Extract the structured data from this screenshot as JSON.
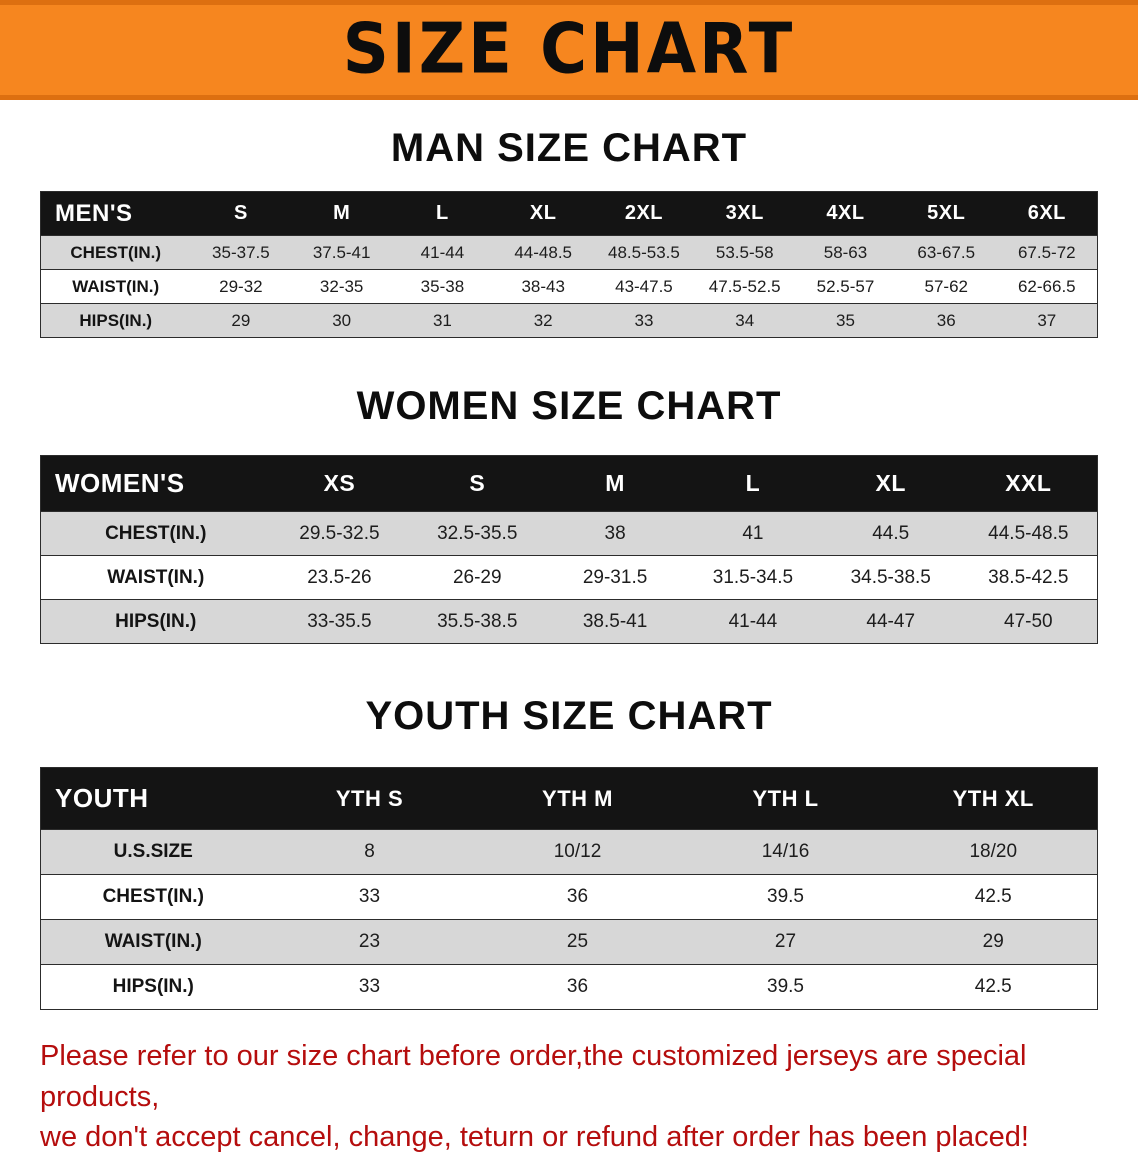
{
  "banner": {
    "title": "SIZE CHART",
    "background": "#F6861F"
  },
  "sections": [
    {
      "heading": "MAN SIZE CHART",
      "table": {
        "header": [
          "MEN'S",
          "S",
          "M",
          "L",
          "XL",
          "2XL",
          "3XL",
          "4XL",
          "5XL",
          "6XL"
        ],
        "rows": [
          [
            "CHEST(IN.)",
            "35-37.5",
            "37.5-41",
            "41-44",
            "44-48.5",
            "48.5-53.5",
            "53.5-58",
            "58-63",
            "63-67.5",
            "67.5-72"
          ],
          [
            "WAIST(IN.)",
            "29-32",
            "32-35",
            "35-38",
            "38-43",
            "43-47.5",
            "47.5-52.5",
            "52.5-57",
            "57-62",
            "62-66.5"
          ],
          [
            "HIPS(IN.)",
            "29",
            "30",
            "31",
            "32",
            "33",
            "34",
            "35",
            "36",
            "37"
          ]
        ]
      }
    },
    {
      "heading": "WOMEN SIZE CHART",
      "table": {
        "header": [
          "WOMEN'S",
          "XS",
          "S",
          "M",
          "L",
          "XL",
          "XXL"
        ],
        "rows": [
          [
            "CHEST(IN.)",
            "29.5-32.5",
            "32.5-35.5",
            "38",
            "41",
            "44.5",
            "44.5-48.5"
          ],
          [
            "WAIST(IN.)",
            "23.5-26",
            "26-29",
            "29-31.5",
            "31.5-34.5",
            "34.5-38.5",
            "38.5-42.5"
          ],
          [
            "HIPS(IN.)",
            "33-35.5",
            "35.5-38.5",
            "38.5-41",
            "41-44",
            "44-47",
            "47-50"
          ]
        ]
      }
    },
    {
      "heading": "YOUTH SIZE CHART",
      "table": {
        "header": [
          "YOUTH",
          "YTH S",
          "YTH M",
          "YTH L",
          "YTH XL"
        ],
        "rows": [
          [
            "U.S.SIZE",
            "8",
            "10/12",
            "14/16",
            "18/20"
          ],
          [
            "CHEST(IN.)",
            "33",
            "36",
            "39.5",
            "42.5"
          ],
          [
            "WAIST(IN.)",
            "23",
            "25",
            "27",
            "29"
          ],
          [
            "HIPS(IN.)",
            "33",
            "36",
            "39.5",
            "42.5"
          ]
        ]
      }
    }
  ],
  "footer": {
    "color": "#b50d0d",
    "lines": [
      "Please refer to our size chart before order,the customized jerseys are special products,",
      "we don't accept cancel, change, teturn or refund after order has been placed!"
    ]
  }
}
